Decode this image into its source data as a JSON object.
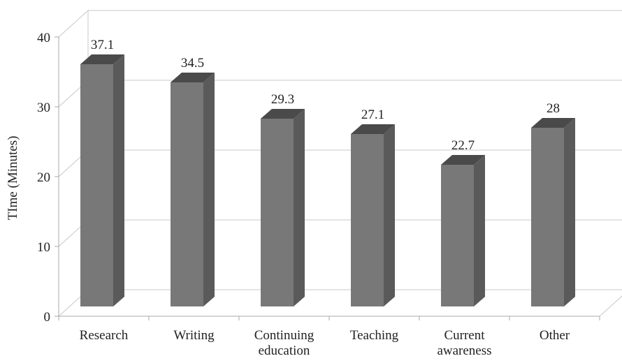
{
  "chart_data": {
    "type": "bar",
    "categories": [
      [
        "Research"
      ],
      [
        "Writing"
      ],
      [
        "Continuing",
        "education"
      ],
      [
        "Teaching"
      ],
      [
        "Current",
        "awareness"
      ],
      [
        "Other"
      ]
    ],
    "values": [
      37.1,
      34.5,
      29.3,
      27.1,
      22.7,
      28
    ],
    "value_labels": [
      "37.1",
      "34.5",
      "29.3",
      "27.1",
      "22.7",
      "28"
    ],
    "ylabel": "TIme (Minutes)",
    "xlabel": "",
    "ylim": [
      0,
      40
    ],
    "yticks": [
      "0",
      "10",
      "20",
      "30",
      "40"
    ],
    "grid": true,
    "style": "3d-column",
    "colors": {
      "bar_front": "#787878",
      "bar_side": "#5a5a5a",
      "bar_top": "#4a4a4a",
      "grid": "#c8c8c8",
      "axis": "#a8a8a8"
    }
  }
}
